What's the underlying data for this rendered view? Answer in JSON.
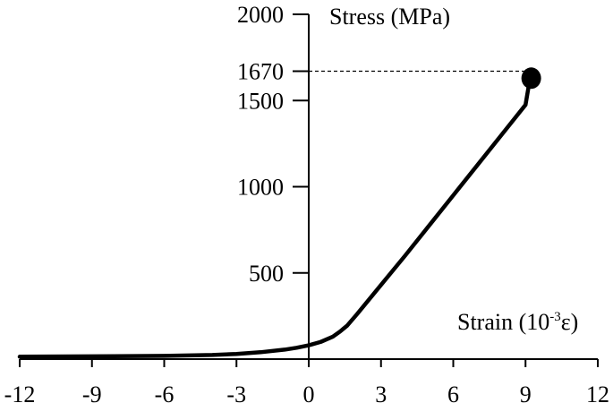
{
  "chart_data": {
    "type": "line",
    "xlabel": "Strain (10",
    "xlabel_sup": "-3",
    "xlabel_suffix": "ε)",
    "ylabel": "Stress (MPa)",
    "xlim": [
      -12,
      12
    ],
    "ylim": [
      -50,
      2000
    ],
    "x_ticks": [
      -12,
      -9,
      -6,
      -3,
      0,
      3,
      6,
      9,
      12
    ],
    "x_tick_labels": [
      "-12",
      "-9",
      "-6",
      "-3",
      "0",
      "3",
      "6",
      "9",
      "12"
    ],
    "y_ticks": [
      500,
      1000,
      1500,
      1670,
      2000
    ],
    "y_tick_labels": [
      "500",
      "1000",
      "1500",
      "1670",
      "2000"
    ],
    "grid": false,
    "series": [
      {
        "x": [
          -12,
          -9,
          -6,
          -4,
          -3,
          -2,
          -1,
          -0.5,
          0,
          0.5,
          1,
          1.3,
          1.6,
          2,
          3,
          4,
          5,
          6,
          7,
          8,
          9,
          9.2
        ],
        "y": [
          14,
          16,
          19,
          24,
          30,
          40,
          55,
          66,
          80,
          100,
          130,
          160,
          195,
          260,
          430,
          600,
          775,
          950,
          1125,
          1300,
          1475,
          1640
        ]
      }
    ],
    "markers": [
      {
        "x": 9.2,
        "y": 1640
      }
    ],
    "reference_lines": [
      {
        "y": 1670,
        "x_from": 0,
        "x_to": 9.2
      }
    ]
  }
}
